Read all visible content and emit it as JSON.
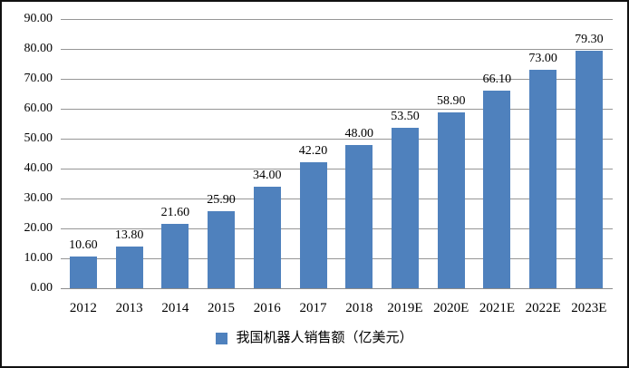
{
  "chart_data": {
    "type": "bar",
    "categories": [
      "2012",
      "2013",
      "2014",
      "2015",
      "2016",
      "2017",
      "2018",
      "2019E",
      "2020E",
      "2021E",
      "2022E",
      "2023E"
    ],
    "values": [
      10.6,
      13.8,
      21.6,
      25.9,
      34.0,
      42.2,
      48.0,
      53.5,
      58.9,
      66.1,
      73.0,
      79.3
    ],
    "series_name": "我国机器人销售额（亿美元）",
    "title": "",
    "xlabel": "",
    "ylabel": "",
    "ylim": [
      0,
      90
    ],
    "ytick_step": 10,
    "ytick_labels": [
      "0.00",
      "10.00",
      "20.00",
      "30.00",
      "40.00",
      "50.00",
      "60.00",
      "70.00",
      "80.00",
      "90.00"
    ],
    "grid": true,
    "legend_position": "bottom",
    "value_labels": true,
    "colors": {
      "bar_fill": "#4F81BD",
      "gridline": "#969696",
      "axis_line": "#8c8c8c",
      "text": "#000000",
      "frame_border": "#111111",
      "background": "#ffffff"
    }
  },
  "legend": {
    "marker_icon": "blue-square-icon",
    "label": "我国机器人销售额（亿美元）"
  }
}
